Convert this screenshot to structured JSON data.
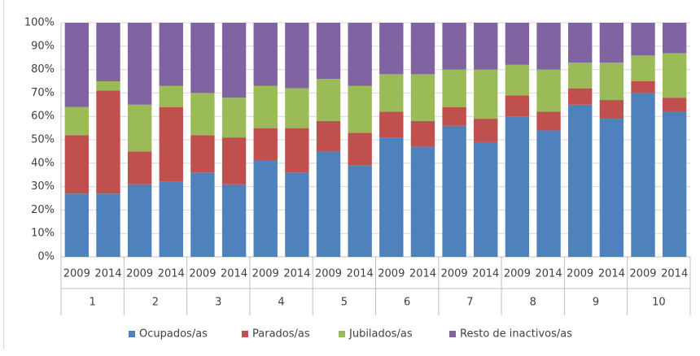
{
  "chart_data": {
    "type": "stacked_bar",
    "categories": [
      "2009",
      "2014",
      "2009",
      "2014",
      "2009",
      "2014",
      "2009",
      "2014",
      "2009",
      "2014",
      "2009",
      "2014",
      "2009",
      "2014",
      "2009",
      "2014",
      "2009",
      "2014",
      "2009",
      "2014"
    ],
    "groups": [
      "1",
      "2",
      "3",
      "4",
      "5",
      "6",
      "7",
      "8",
      "9",
      "10"
    ],
    "series": [
      {
        "name": "Ocupados/as",
        "color": "#4f81bd",
        "values": [
          27,
          27,
          31,
          32,
          36,
          31,
          41,
          36,
          45,
          39,
          51,
          47,
          56,
          49,
          60,
          54,
          65,
          59,
          70,
          62
        ]
      },
      {
        "name": "Parados/as",
        "color": "#c0504d",
        "values": [
          25,
          44,
          14,
          32,
          16,
          20,
          14,
          19,
          13,
          14,
          11,
          11,
          8,
          10,
          9,
          8,
          7,
          8,
          5,
          6
        ]
      },
      {
        "name": "Jubilados/as",
        "color": "#9bbb59",
        "values": [
          12,
          4,
          20,
          9,
          18,
          17,
          18,
          17,
          18,
          20,
          16,
          20,
          16,
          21,
          13,
          18,
          11,
          16,
          11,
          19
        ]
      },
      {
        "name": "Resto de inactivos/as",
        "color": "#8064a2",
        "values": [
          36,
          25,
          35,
          27,
          30,
          32,
          27,
          28,
          24,
          27,
          22,
          22,
          20,
          20,
          18,
          20,
          17,
          17,
          14,
          13
        ]
      }
    ],
    "ylim": [
      0,
      100
    ],
    "yticks": [
      {
        "value": 0,
        "label": "0%"
      },
      {
        "value": 10,
        "label": "10%"
      },
      {
        "value": 20,
        "label": "20%"
      },
      {
        "value": 30,
        "label": "30%"
      },
      {
        "value": 40,
        "label": "40%"
      },
      {
        "value": 50,
        "label": "50%"
      },
      {
        "value": 60,
        "label": "60%"
      },
      {
        "value": 70,
        "label": "70%"
      },
      {
        "value": 80,
        "label": "80%"
      },
      {
        "value": 90,
        "label": "90%"
      },
      {
        "value": 100,
        "label": "100%"
      }
    ],
    "grid": true,
    "legend": "bottom"
  }
}
